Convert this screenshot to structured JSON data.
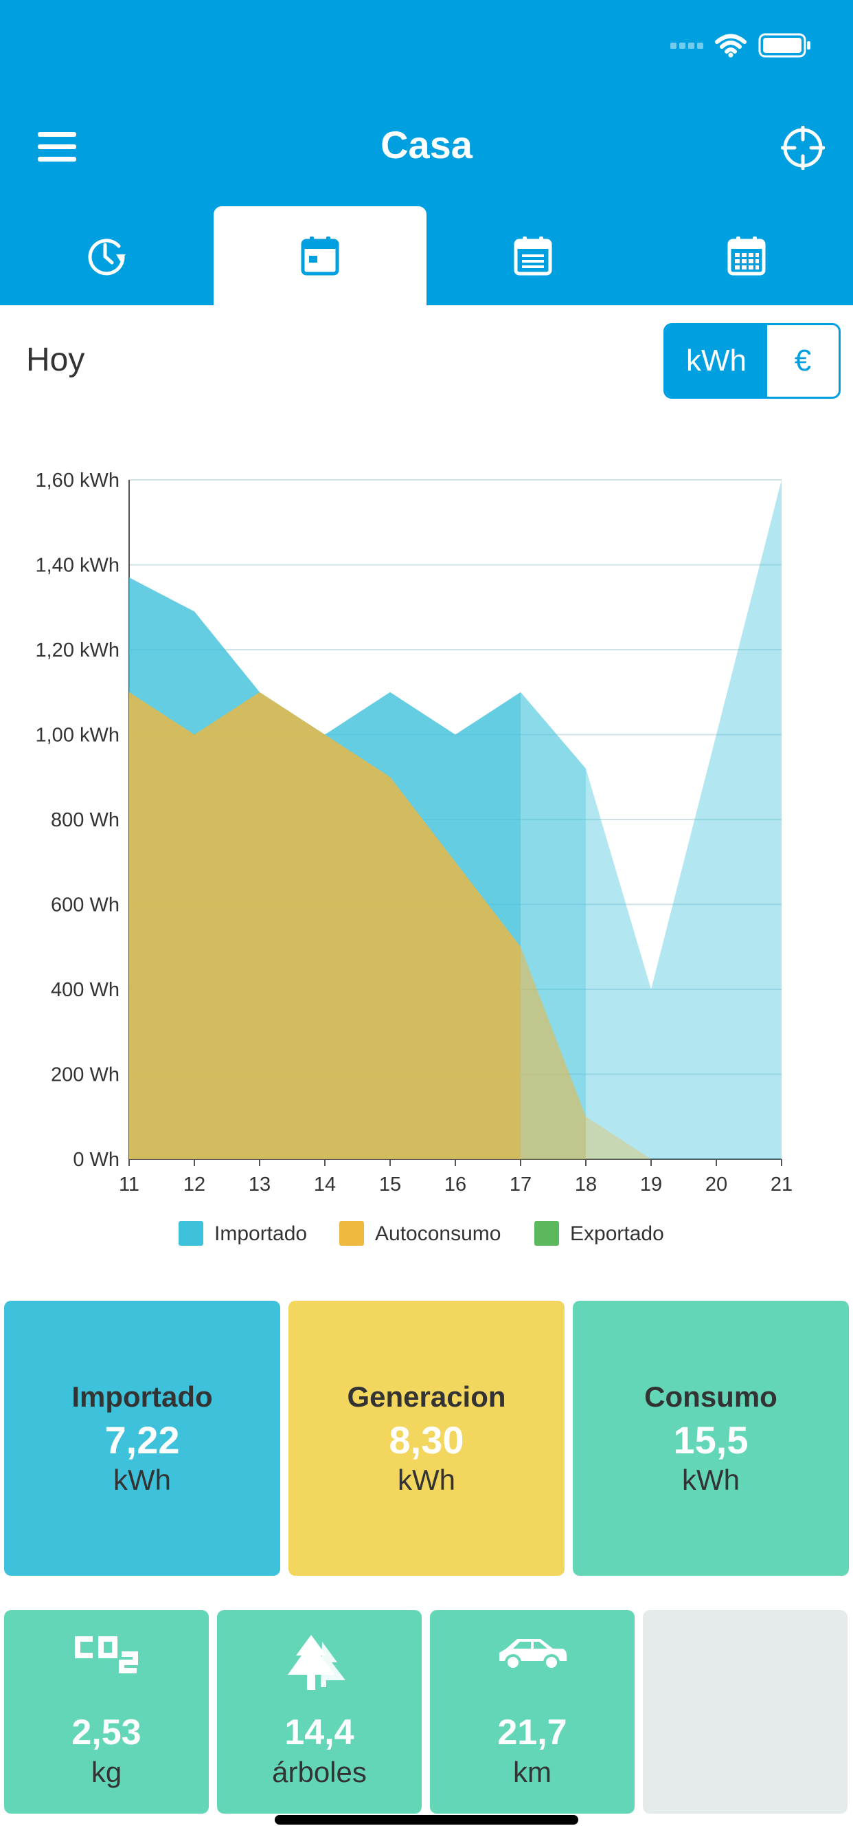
{
  "header": {
    "title": "Casa",
    "menu_icon": "hamburger-menu-icon",
    "locate_icon": "crosshair-icon",
    "color": "#00a0e0"
  },
  "tabs": [
    {
      "name": "realtime",
      "icon": "clock-refresh-icon",
      "active": false
    },
    {
      "name": "day",
      "icon": "calendar-day-icon",
      "active": true
    },
    {
      "name": "month",
      "icon": "calendar-month-icon",
      "active": false
    },
    {
      "name": "year",
      "icon": "calendar-year-icon",
      "active": false
    }
  ],
  "period_label": "Hoy",
  "unit_toggle": {
    "kwh": "kWh",
    "eur": "€",
    "selected": "kWh"
  },
  "chart_data": {
    "type": "area",
    "x": [
      11,
      12,
      13,
      14,
      15,
      16,
      17,
      18,
      19,
      20,
      21
    ],
    "ylim": [
      0,
      1600
    ],
    "yticks": [
      "0 Wh",
      "200 Wh",
      "400 Wh",
      "600 Wh",
      "800 Wh",
      "1,00 kWh",
      "1,20 kWh",
      "1,40 kWh",
      "1,60 kWh"
    ],
    "series": [
      {
        "name": "Importado",
        "color": "#3ec1db",
        "values": [
          1370,
          1290,
          1100,
          1000,
          1100,
          1000,
          1100,
          920,
          400,
          1000,
          1600
        ]
      },
      {
        "name": "Autoconsumo",
        "color": "#efb83f",
        "values": [
          1100,
          1000,
          1100,
          1000,
          900,
          700,
          500,
          100,
          0,
          0,
          0
        ]
      },
      {
        "name": "Exportado",
        "color": "#5cb85c",
        "values": [
          0,
          0,
          0,
          0,
          0,
          0,
          0,
          0,
          0,
          0,
          0
        ]
      }
    ],
    "faded_after_x": 17,
    "grid": true,
    "legend": "bottom"
  },
  "summary": [
    {
      "label": "Importado",
      "value": "7,22",
      "unit": "kWh",
      "color": "#3ec1db"
    },
    {
      "label": "Generacion",
      "value": "8,30",
      "unit": "kWh",
      "color": "#f3d65e"
    },
    {
      "label": "Consumo",
      "value": "15,5",
      "unit": "kWh",
      "color": "#62d6b6"
    }
  ],
  "eco": [
    {
      "icon": "co2-icon",
      "value": "2,53",
      "unit": "kg"
    },
    {
      "icon": "trees-icon",
      "value": "14,4",
      "unit": "árboles"
    },
    {
      "icon": "car-icon",
      "value": "21,7",
      "unit": "km"
    }
  ]
}
